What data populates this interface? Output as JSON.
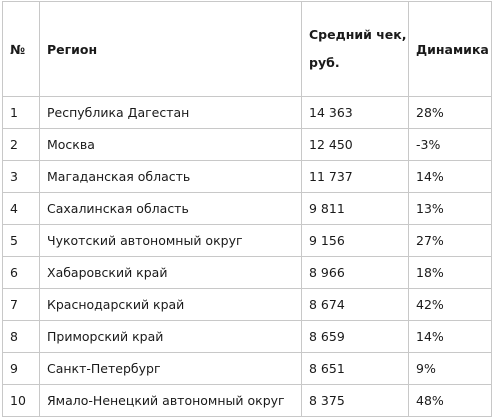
{
  "table": {
    "headers": {
      "num": "№",
      "region": "Регион",
      "avg_check": "Средний чек, руб.",
      "dynamics": "Динамика"
    },
    "rows": [
      {
        "num": "1",
        "region": "Республика Дагестан",
        "avg_check": "14 363",
        "dynamics": "28%"
      },
      {
        "num": "2",
        "region": "Москва",
        "avg_check": "12 450",
        "dynamics": "-3%"
      },
      {
        "num": "3",
        "region": "Магаданская область",
        "avg_check": "11 737",
        "dynamics": "14%"
      },
      {
        "num": "4",
        "region": "Сахалинская область",
        "avg_check": "9 811",
        "dynamics": "13%"
      },
      {
        "num": "5",
        "region": "Чукотский автономный округ",
        "avg_check": "9 156",
        "dynamics": "27%"
      },
      {
        "num": "6",
        "region": "Хабаровский край",
        "avg_check": "8 966",
        "dynamics": "18%"
      },
      {
        "num": "7",
        "region": "Краснодарский край",
        "avg_check": "8 674",
        "dynamics": "42%"
      },
      {
        "num": "8",
        "region": "Приморский край",
        "avg_check": "8 659",
        "dynamics": "14%"
      },
      {
        "num": "9",
        "region": "Санкт-Петербург",
        "avg_check": "8 651",
        "dynamics": "9%"
      },
      {
        "num": "10",
        "region": "Ямало-Ненецкий автономный округ",
        "avg_check": "8 375",
        "dynamics": "48%"
      }
    ]
  }
}
